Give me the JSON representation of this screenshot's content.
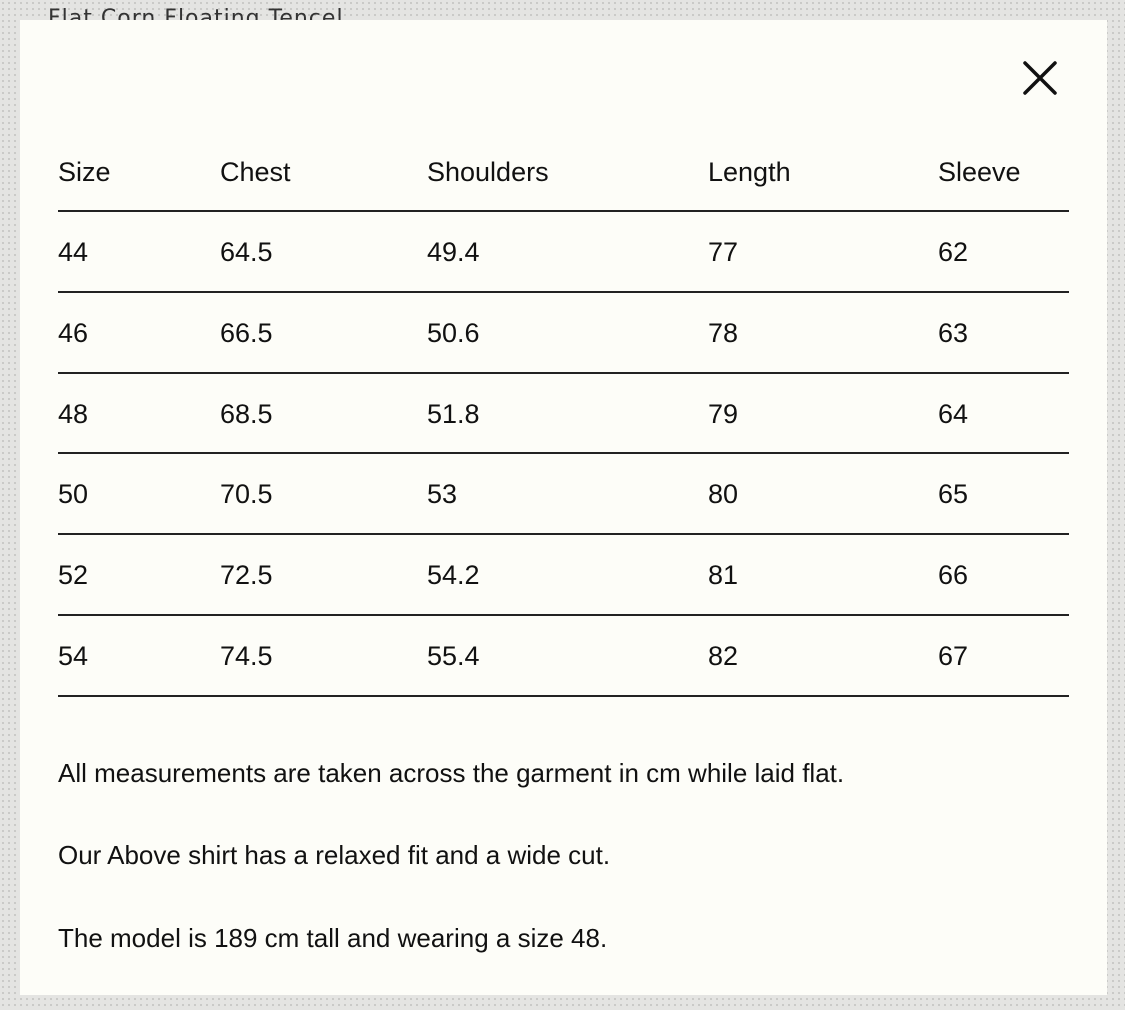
{
  "background_title": "Flat Corn Floating Tencel",
  "table": {
    "headers": [
      "Size",
      "Chest",
      "Shoulders",
      "Length",
      "Sleeve"
    ],
    "rows": [
      [
        "44",
        "64.5",
        "49.4",
        "77",
        "62"
      ],
      [
        "46",
        "66.5",
        "50.6",
        "78",
        "63"
      ],
      [
        "48",
        "68.5",
        "51.8",
        "79",
        "64"
      ],
      [
        "50",
        "70.5",
        "53",
        "80",
        "65"
      ],
      [
        "52",
        "72.5",
        "54.2",
        "81",
        "66"
      ],
      [
        "54",
        "74.5",
        "55.4",
        "82",
        "67"
      ]
    ]
  },
  "notes": [
    "All measurements are taken across the garment in cm while laid flat.",
    "Our Above shirt has a relaxed fit and a wide cut.",
    "The model is 189 cm tall and wearing a size 48."
  ],
  "close_icon": "close-icon"
}
